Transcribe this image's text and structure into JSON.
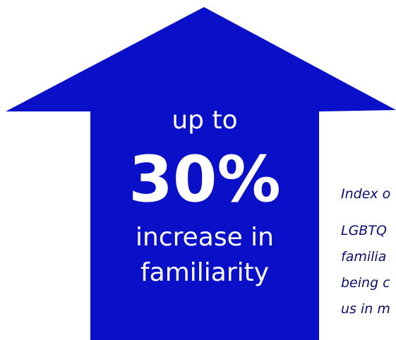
{
  "headline": {
    "prefix": "up to",
    "figure": "30%",
    "suffix_lines": [
      "increase in",
      "familiarity"
    ]
  },
  "note_lines": [
    "Index o",
    "LGBTQ",
    "familia",
    "being c",
    "us in m"
  ]
}
